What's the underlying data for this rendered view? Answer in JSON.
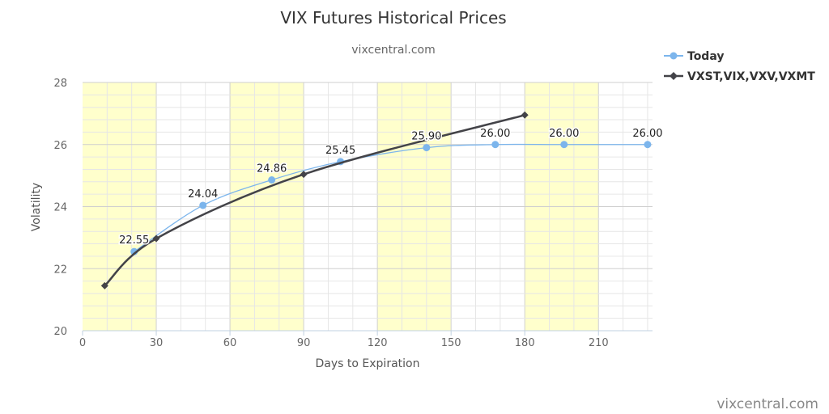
{
  "chart_data": {
    "type": "line",
    "title": "VIX Futures Historical Prices",
    "subtitle": "vixcentral.com",
    "xlabel": "Days to Expiration",
    "ylabel": "Volatility",
    "xlim": [
      0,
      232
    ],
    "ylim": [
      20,
      28
    ],
    "x_ticks": [
      "0",
      "30",
      "60",
      "90",
      "120",
      "150",
      "180",
      "210"
    ],
    "y_ticks": [
      "20",
      "22",
      "24",
      "26",
      "28"
    ],
    "bands": [
      [
        0,
        30
      ],
      [
        60,
        90
      ],
      [
        120,
        150
      ],
      [
        180,
        210
      ]
    ],
    "band_color": "#ffffcc",
    "grid": true,
    "legend_position": "top-right",
    "series": [
      {
        "name": "Today",
        "color": "#7cb5ec",
        "marker": "circle",
        "x": [
          21,
          49,
          77,
          105,
          140,
          168,
          196,
          230
        ],
        "y": [
          22.55,
          24.04,
          24.86,
          25.45,
          25.9,
          26.0,
          26.0,
          26.0
        ],
        "labels": [
          "22.55",
          "24.04",
          "24.86",
          "25.45",
          "25.90",
          "26.00",
          "26.00",
          "26.00"
        ]
      },
      {
        "name": "VXST,VIX,VXV,VXMT",
        "color": "#434348",
        "marker": "diamond",
        "x": [
          9,
          30,
          90,
          180
        ],
        "y": [
          21.45,
          22.97,
          25.04,
          26.95
        ]
      }
    ]
  },
  "credit": "vixcentral.com"
}
